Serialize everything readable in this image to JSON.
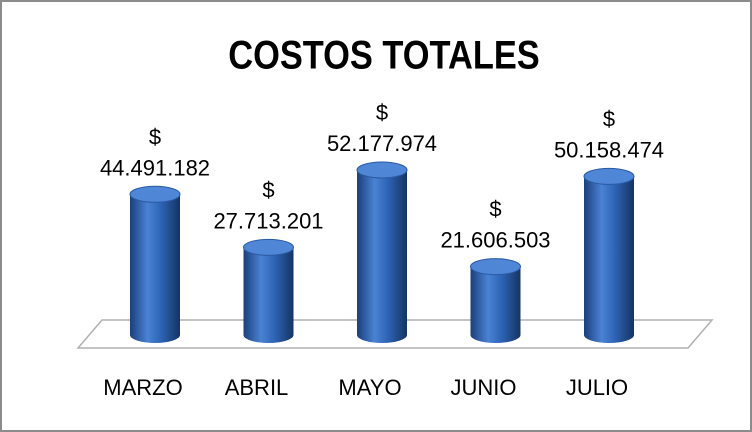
{
  "chart_data": {
    "type": "bar3d",
    "title": "COSTOS TOTALES",
    "categories": [
      "MARZO",
      "ABRIL",
      "MAYO",
      "JUNIO",
      "JULIO"
    ],
    "values": [
      44491182,
      27713201,
      52177974,
      21606503,
      50158474
    ],
    "value_labels": [
      "$\n44.491.182",
      "$\n27.713.201",
      "$\n52.177.974",
      "$\n21.606.503",
      "$\n50.158.474"
    ],
    "color": "#2f66b8"
  }
}
